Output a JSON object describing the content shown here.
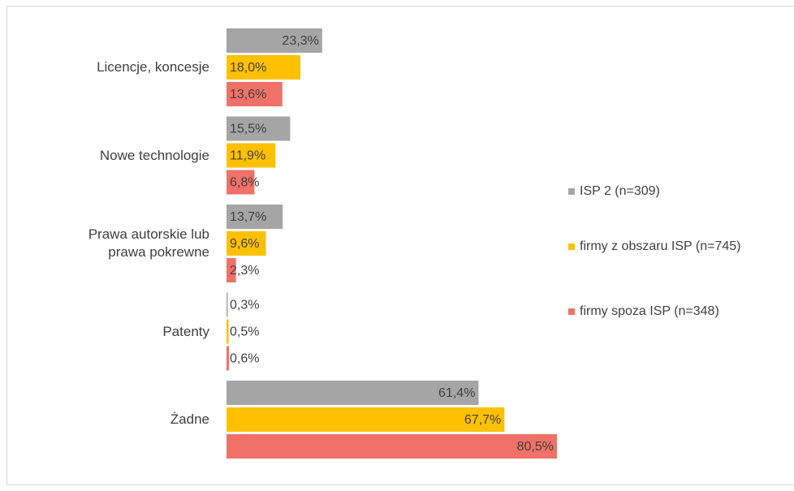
{
  "chart_data": {
    "type": "hbar",
    "categories": [
      "Licencje, koncesje",
      "Nowe technologie",
      "Prawa autorskie lub prawa pokrewne",
      "Patenty",
      "Żadne"
    ],
    "series": [
      {
        "name": "ISP 2 (n=309)",
        "color": "#a5a5a5",
        "values": [
          23.3,
          15.5,
          13.7,
          0.3,
          61.4
        ],
        "value_labels": [
          "23,3%",
          "15,5%",
          "13,7%",
          "0,3%",
          "61,4%"
        ]
      },
      {
        "name": "firmy z obszaru ISP (n=745)",
        "color": "#ffc000",
        "values": [
          18.0,
          11.9,
          9.6,
          0.5,
          67.7
        ],
        "value_labels": [
          "18,0%",
          "11,9%",
          "9,6%",
          "0,5%",
          "67,7%"
        ]
      },
      {
        "name": "firmy spoza ISP (n=348)",
        "color": "#f07167",
        "values": [
          13.6,
          6.8,
          2.3,
          0.6,
          80.5
        ],
        "value_labels": [
          "13,6%",
          "6,8%",
          "2,3%",
          "0,6%",
          "80,5%"
        ]
      }
    ],
    "legend": "right"
  }
}
